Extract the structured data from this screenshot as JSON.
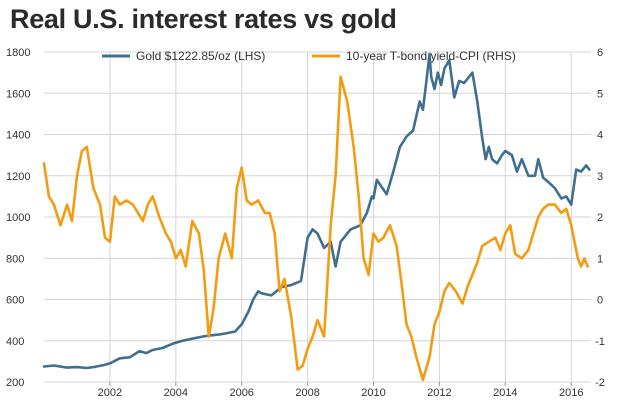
{
  "chart_data": {
    "type": "line",
    "title": "Real U.S. interest rates vs gold",
    "xlabel": "",
    "ylabel_left": "",
    "ylabel_right": "",
    "x_ticks": [
      "2002",
      "2004",
      "2006",
      "2008",
      "2010",
      "2012",
      "2014",
      "2016"
    ],
    "x_tick_values": [
      2002,
      2004,
      2006,
      2008,
      2010,
      2012,
      2014,
      2016
    ],
    "xlim": [
      2000.0,
      2016.6
    ],
    "y_left_ticks": [
      "200",
      "400",
      "600",
      "800",
      "1000",
      "1200",
      "1400",
      "1600",
      "1800"
    ],
    "y_left_tick_values": [
      200,
      400,
      600,
      800,
      1000,
      1200,
      1400,
      1600,
      1800
    ],
    "ylim_left": [
      200,
      1800
    ],
    "y_right_ticks": [
      "-2",
      "-1",
      "0",
      "1",
      "2",
      "3",
      "4",
      "5",
      "6"
    ],
    "y_right_tick_values": [
      -2,
      -1,
      0,
      1,
      2,
      3,
      4,
      5,
      6
    ],
    "ylim_right": [
      -2,
      6
    ],
    "legend_position": "top",
    "grid": true,
    "series": [
      {
        "name": "Gold $1222.85/oz (LHS)",
        "axis": "left",
        "color": "#3f6f8f",
        "x": [
          2000.0,
          2000.3,
          2000.7,
          2001.0,
          2001.3,
          2001.5,
          2001.8,
          2002.0,
          2002.3,
          2002.6,
          2002.9,
          2003.1,
          2003.3,
          2003.6,
          2003.9,
          2004.2,
          2004.5,
          2004.8,
          2005.0,
          2005.3,
          2005.5,
          2005.8,
          2006.0,
          2006.2,
          2006.35,
          2006.5,
          2006.6,
          2006.9,
          2007.2,
          2007.5,
          2007.8,
          2008.0,
          2008.15,
          2008.3,
          2008.5,
          2008.7,
          2008.85,
          2009.0,
          2009.3,
          2009.6,
          2009.8,
          2009.95,
          2010.0,
          2010.1,
          2010.4,
          2010.6,
          2010.8,
          2011.0,
          2011.2,
          2011.4,
          2011.5,
          2011.6,
          2011.7,
          2011.75,
          2011.85,
          2011.95,
          2012.05,
          2012.15,
          2012.3,
          2012.45,
          2012.6,
          2012.75,
          2012.9,
          2013.0,
          2013.15,
          2013.3,
          2013.4,
          2013.5,
          2013.6,
          2013.75,
          2013.9,
          2014.0,
          2014.2,
          2014.35,
          2014.5,
          2014.7,
          2014.9,
          2015.0,
          2015.15,
          2015.3,
          2015.5,
          2015.7,
          2015.85,
          2016.0,
          2016.15,
          2016.3,
          2016.45,
          2016.55
        ],
        "values": [
          275,
          280,
          270,
          272,
          268,
          272,
          282,
          290,
          315,
          320,
          350,
          340,
          355,
          365,
          385,
          400,
          410,
          420,
          425,
          430,
          435,
          445,
          480,
          540,
          600,
          640,
          630,
          620,
          660,
          670,
          690,
          900,
          940,
          920,
          850,
          880,
          760,
          880,
          940,
          960,
          1020,
          1100,
          1090,
          1180,
          1110,
          1220,
          1340,
          1390,
          1420,
          1560,
          1520,
          1650,
          1790,
          1680,
          1620,
          1700,
          1640,
          1720,
          1760,
          1580,
          1660,
          1650,
          1680,
          1700,
          1560,
          1380,
          1280,
          1340,
          1280,
          1260,
          1300,
          1320,
          1300,
          1220,
          1280,
          1200,
          1200,
          1280,
          1190,
          1170,
          1140,
          1090,
          1100,
          1060,
          1230,
          1220,
          1250,
          1230
        ]
      },
      {
        "name": "10-year T-bond yield-CPI (RHS)",
        "axis": "right",
        "color": "#f39c12",
        "x": [
          2000.0,
          2000.15,
          2000.3,
          2000.5,
          2000.7,
          2000.85,
          2001.0,
          2001.15,
          2001.3,
          2001.5,
          2001.7,
          2001.85,
          2002.0,
          2002.15,
          2002.3,
          2002.5,
          2002.7,
          2002.85,
          2003.0,
          2003.15,
          2003.3,
          2003.5,
          2003.7,
          2003.85,
          2004.0,
          2004.15,
          2004.3,
          2004.5,
          2004.7,
          2004.85,
          2005.0,
          2005.15,
          2005.3,
          2005.5,
          2005.7,
          2005.85,
          2006.0,
          2006.15,
          2006.3,
          2006.5,
          2006.7,
          2006.85,
          2007.0,
          2007.15,
          2007.3,
          2007.5,
          2007.7,
          2007.85,
          2008.0,
          2008.15,
          2008.3,
          2008.5,
          2008.7,
          2008.85,
          2009.0,
          2009.2,
          2009.4,
          2009.55,
          2009.7,
          2009.85,
          2010.0,
          2010.15,
          2010.3,
          2010.5,
          2010.7,
          2010.85,
          2011.0,
          2011.15,
          2011.3,
          2011.5,
          2011.7,
          2011.85,
          2012.0,
          2012.15,
          2012.3,
          2012.5,
          2012.7,
          2012.85,
          2013.0,
          2013.15,
          2013.3,
          2013.5,
          2013.7,
          2013.85,
          2014.0,
          2014.15,
          2014.3,
          2014.5,
          2014.7,
          2014.85,
          2015.0,
          2015.15,
          2015.3,
          2015.5,
          2015.7,
          2015.85,
          2016.0,
          2016.1,
          2016.2,
          2016.3,
          2016.4,
          2016.5
        ],
        "values": [
          3.3,
          2.5,
          2.3,
          1.8,
          2.3,
          1.9,
          3.0,
          3.6,
          3.7,
          2.7,
          2.3,
          1.5,
          1.4,
          2.5,
          2.3,
          2.4,
          2.3,
          2.1,
          1.9,
          2.3,
          2.5,
          2.0,
          1.6,
          1.4,
          1.0,
          1.2,
          0.8,
          1.9,
          1.6,
          0.7,
          -0.9,
          -0.2,
          1.0,
          1.6,
          1.0,
          2.7,
          3.2,
          2.4,
          2.3,
          2.4,
          2.1,
          2.1,
          1.6,
          0.2,
          0.5,
          -0.4,
          -1.7,
          -1.6,
          -1.2,
          -0.9,
          -0.5,
          -0.9,
          1.8,
          3.0,
          5.4,
          4.8,
          3.7,
          2.5,
          1.0,
          0.6,
          1.6,
          1.4,
          1.5,
          1.8,
          1.3,
          0.4,
          -0.6,
          -0.9,
          -1.4,
          -1.95,
          -1.4,
          -0.6,
          -0.3,
          0.2,
          0.4,
          0.2,
          -0.1,
          0.3,
          0.6,
          0.9,
          1.3,
          1.4,
          1.5,
          1.2,
          1.6,
          1.8,
          1.1,
          1.0,
          1.2,
          1.6,
          2.0,
          2.2,
          2.3,
          2.3,
          2.1,
          2.2,
          1.8,
          1.4,
          1.0,
          0.8,
          1.0,
          0.8
        ]
      }
    ]
  }
}
